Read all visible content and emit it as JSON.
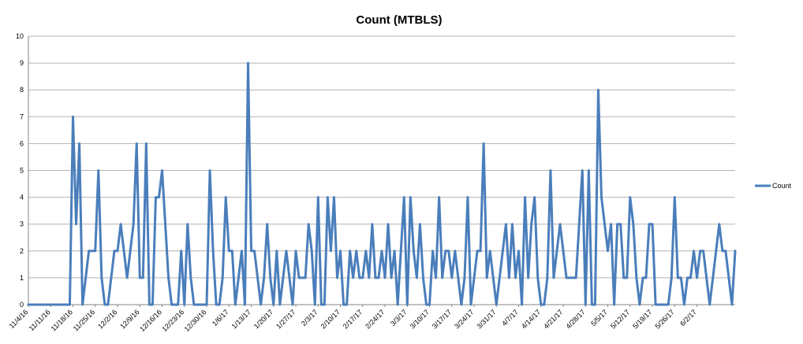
{
  "chart_data": {
    "type": "line",
    "title": "Count (MTBLS)",
    "xlabel": "",
    "ylabel": "",
    "ylim": [
      0,
      10
    ],
    "y_ticks": [
      0,
      1,
      2,
      3,
      4,
      5,
      6,
      7,
      8,
      9,
      10
    ],
    "x_tick_labels": [
      "11/4/16",
      "11/11/16",
      "11/18/16",
      "11/25/16",
      "12/2/16",
      "12/9/16",
      "12/16/16",
      "12/23/16",
      "12/30/16",
      "1/6/17",
      "1/13/17",
      "1/20/17",
      "1/27/17",
      "2/3/17",
      "2/10/17",
      "2/17/17",
      "2/24/17",
      "3/3/17",
      "3/10/17",
      "3/17/17",
      "3/24/17",
      "3/31/17",
      "4/7/17",
      "4/14/17",
      "4/21/17",
      "4/28/17",
      "5/5/17",
      "5/12/17",
      "5/19/17",
      "5/26/17",
      "6/2/17"
    ],
    "x_start": "11/4/16",
    "x_end": "6/6/17",
    "grid": "horizontal",
    "legend_position": "right",
    "series": [
      {
        "name": "Count",
        "color": "#4a7ebb",
        "values": [
          0,
          0,
          0,
          0,
          0,
          0,
          0,
          0,
          0,
          0,
          0,
          0,
          0,
          0,
          7,
          3,
          6,
          0,
          1,
          2,
          2,
          2,
          5,
          1,
          0,
          0,
          1,
          2,
          2,
          3,
          2,
          1,
          2,
          3,
          6,
          1,
          1,
          6,
          0,
          0,
          4,
          4,
          5,
          3,
          1,
          0,
          0,
          0,
          2,
          0,
          3,
          1,
          0,
          0,
          0,
          0,
          0,
          5,
          2,
          0,
          0,
          1,
          4,
          2,
          2,
          0,
          1,
          2,
          0,
          9,
          2,
          2,
          1,
          0,
          1,
          3,
          1,
          0,
          2,
          0,
          1,
          2,
          1,
          0,
          2,
          1,
          1,
          1,
          3,
          2,
          0,
          4,
          0,
          0,
          4,
          2,
          4,
          1,
          2,
          0,
          0,
          2,
          1,
          2,
          1,
          1,
          2,
          1,
          3,
          1,
          1,
          2,
          1,
          3,
          1,
          2,
          0,
          2,
          4,
          0,
          4,
          2,
          1,
          3,
          1,
          0,
          0,
          2,
          1,
          4,
          1,
          2,
          2,
          1,
          2,
          1,
          0,
          1,
          4,
          0,
          1,
          2,
          2,
          6,
          1,
          2,
          1,
          0,
          1,
          2,
          3,
          1,
          3,
          1,
          2,
          0,
          4,
          1,
          3,
          4,
          1,
          0,
          0,
          1,
          5,
          1,
          2,
          3,
          2,
          1,
          1,
          1,
          1,
          3,
          5,
          0,
          5,
          0,
          0,
          8,
          4,
          3,
          2,
          3,
          0,
          3,
          3,
          1,
          1,
          4,
          3,
          1,
          0,
          1,
          1,
          3,
          3,
          0,
          0,
          0,
          0,
          0,
          1,
          4,
          1,
          1,
          0,
          1,
          1,
          2,
          1,
          2,
          2,
          1,
          0,
          1,
          2,
          3,
          2,
          2,
          1,
          0,
          2
        ]
      }
    ]
  }
}
